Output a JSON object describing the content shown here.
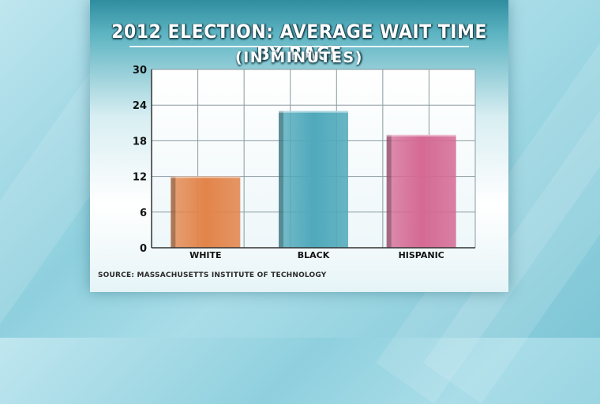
{
  "chart_data": {
    "type": "bar",
    "title": "2012 ELECTION: AVERAGE WAIT TIME BY RACE",
    "subtitle": "(IN MINUTES)",
    "categories": [
      "WHITE",
      "BLACK",
      "HISPANIC"
    ],
    "values": [
      12,
      23,
      19
    ],
    "bar_colors": [
      "#e2844a",
      "#4fa9bb",
      "#d56a94"
    ],
    "ylim": [
      0,
      30
    ],
    "yticks": [
      0,
      6,
      12,
      18,
      24,
      30
    ],
    "grid": true,
    "source": "SOURCE: MASSACHUSETTS INSTITUTE OF TECHNOLOGY"
  }
}
